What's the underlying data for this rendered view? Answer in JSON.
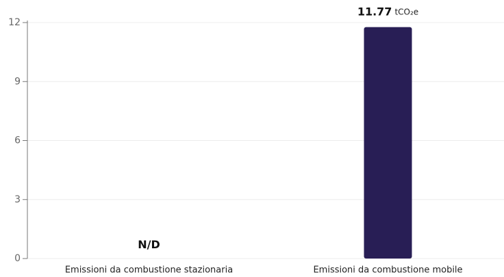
{
  "chart_data": {
    "type": "bar",
    "categories": [
      "Emissioni da combustione stazionaria",
      "Emissioni da combustione mobile"
    ],
    "values": [
      null,
      11.77
    ],
    "value_labels": [
      "N/D",
      "11.77"
    ],
    "unit": "tCO₂e",
    "color": "#281e55",
    "ylim": [
      0,
      12
    ],
    "yticks": [
      0,
      3,
      6,
      9,
      12
    ],
    "grid": true
  }
}
